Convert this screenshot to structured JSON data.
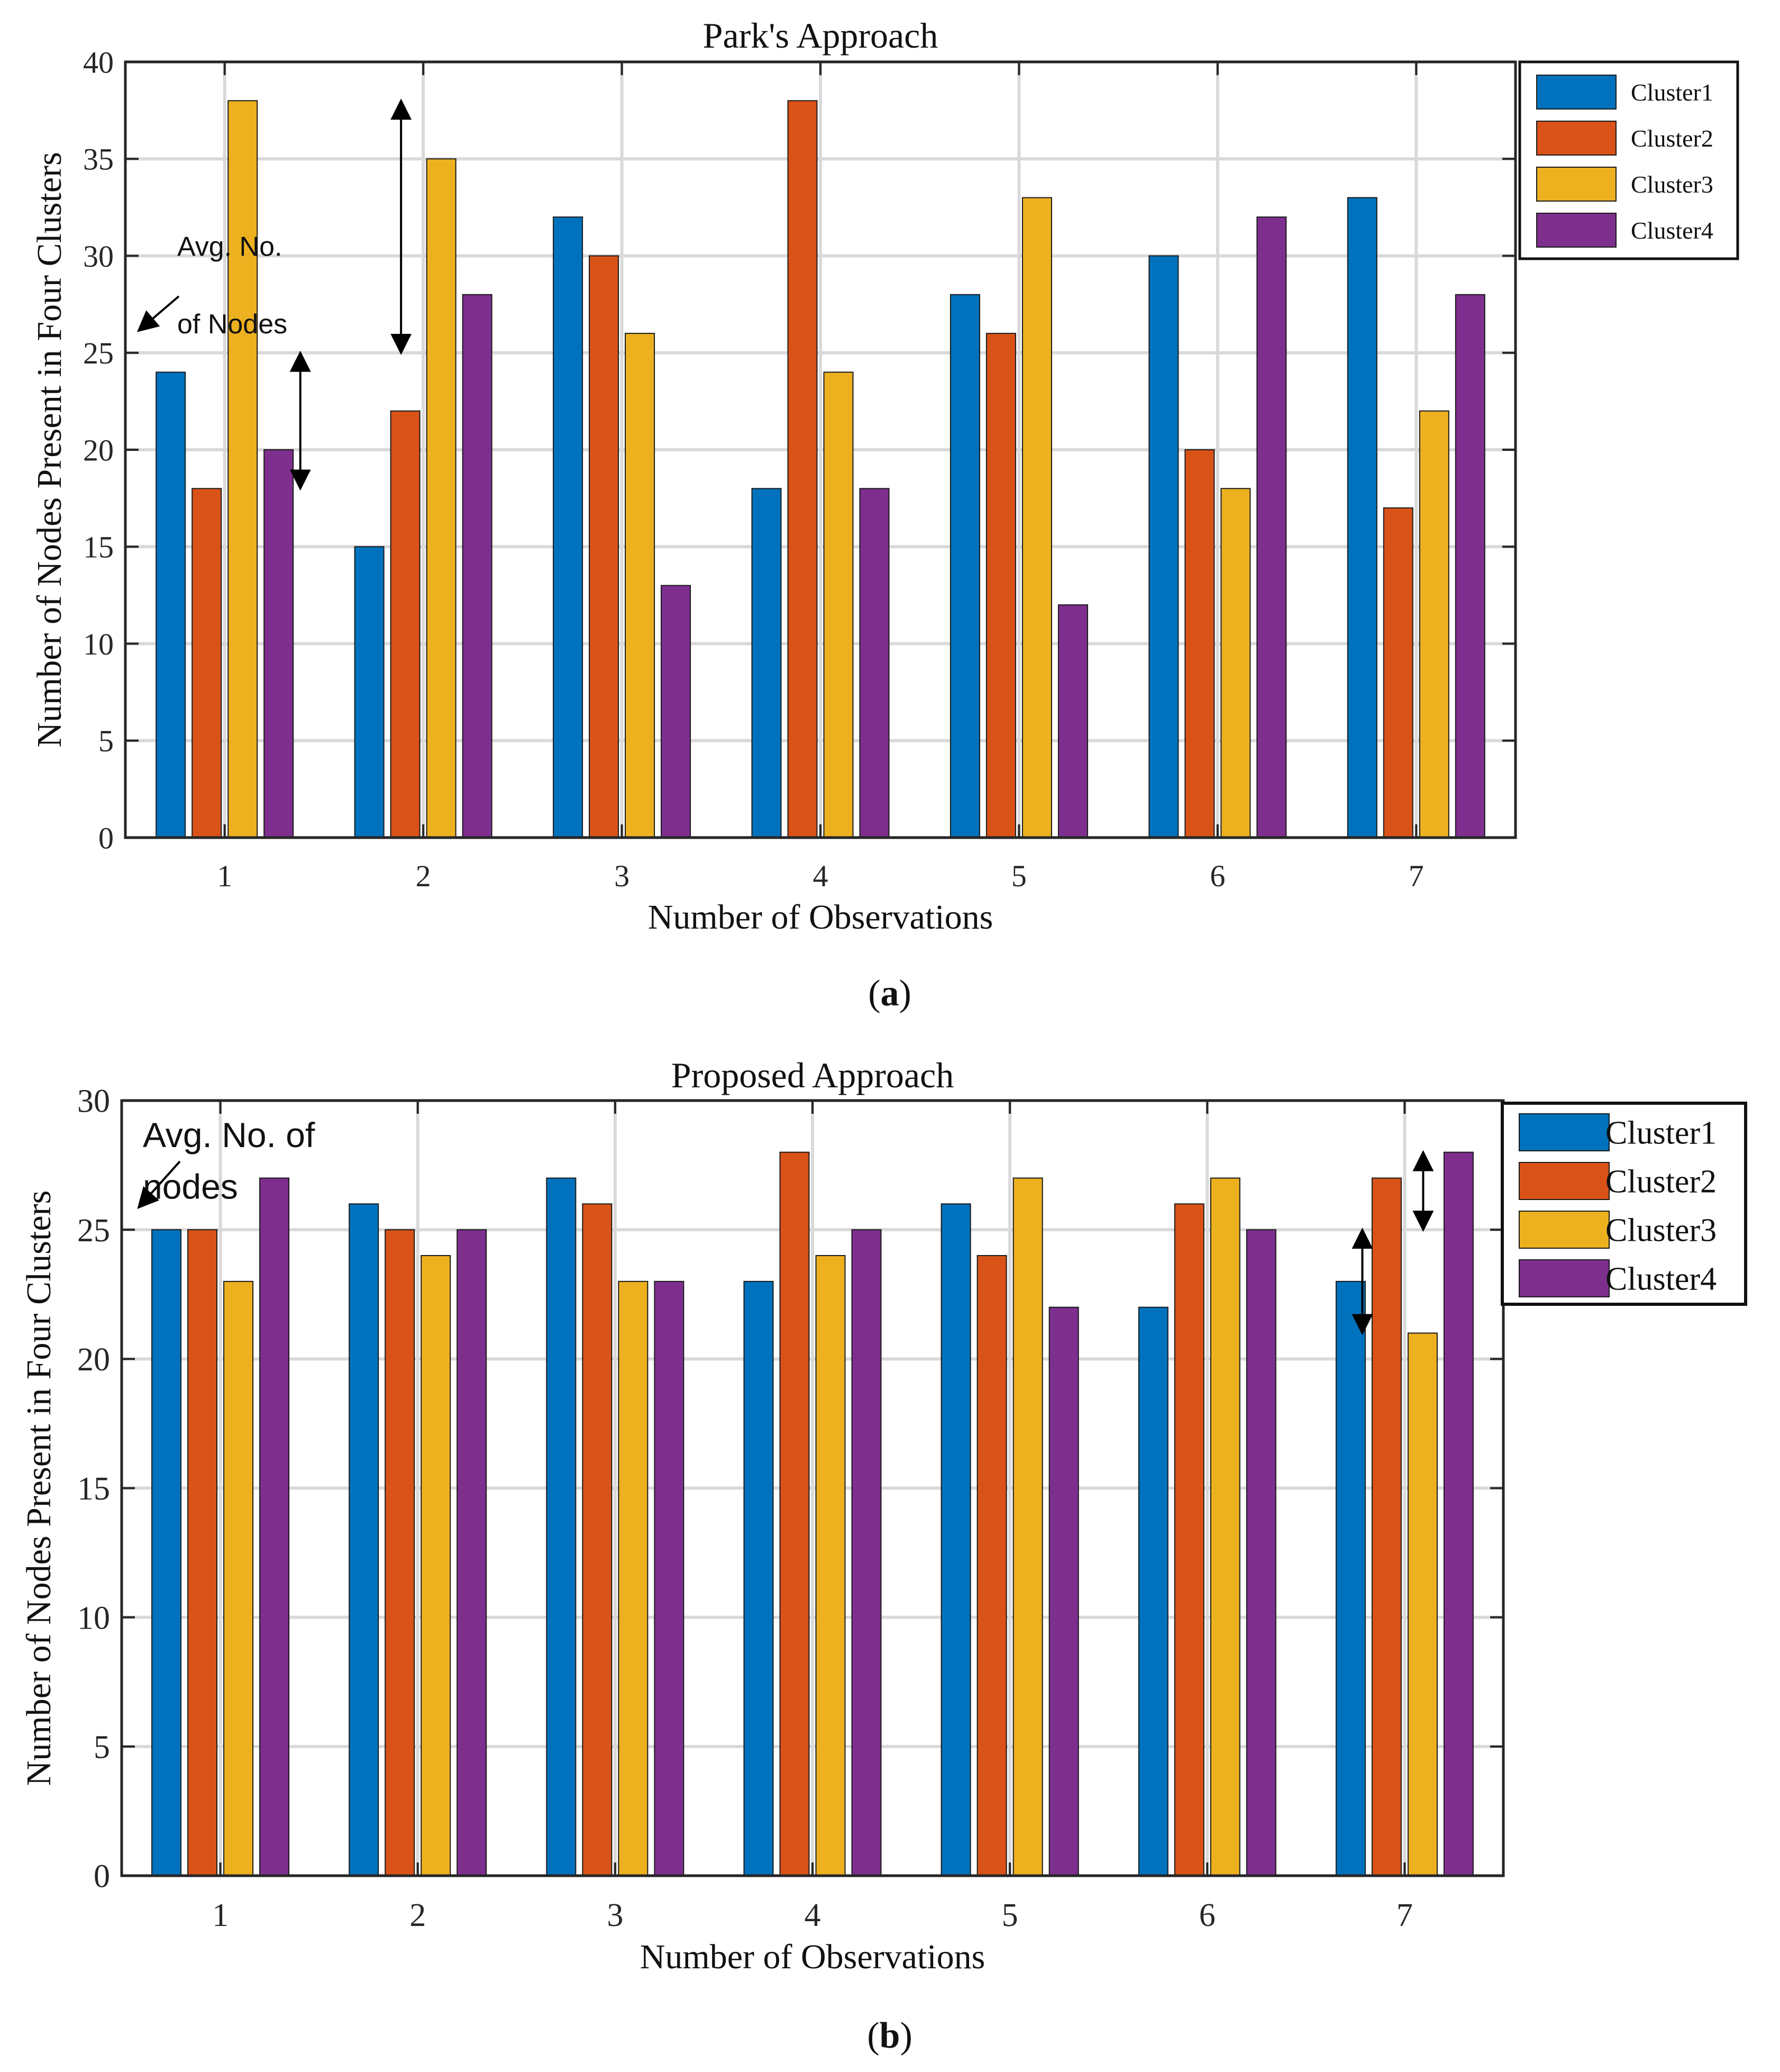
{
  "figure": {
    "panels": [
      "(a)",
      "(b)"
    ],
    "series_colors": [
      "#0072BD",
      "#D95319",
      "#EDB120",
      "#7E2F8E"
    ]
  },
  "chart_data": [
    {
      "type": "bar",
      "panel_label": "(a)",
      "title": "Park's Approach",
      "xlabel": "Number of Observations",
      "ylabel": "Number of Nodes Present in Four Clusters",
      "categories": [
        "1",
        "2",
        "3",
        "4",
        "5",
        "6",
        "7"
      ],
      "ylim": [
        0,
        40
      ],
      "yticks": [
        0,
        5,
        10,
        15,
        20,
        25,
        30,
        35,
        40
      ],
      "grid": true,
      "legend_position": "outside-top-right",
      "series": [
        {
          "name": "Cluster1",
          "values": [
            24,
            15,
            32,
            18,
            28,
            30,
            33
          ]
        },
        {
          "name": "Cluster2",
          "values": [
            18,
            22,
            30,
            38,
            26,
            20,
            17
          ]
        },
        {
          "name": "Cluster3",
          "values": [
            38,
            35,
            26,
            24,
            33,
            18,
            22
          ]
        },
        {
          "name": "Cluster4",
          "values": [
            20,
            28,
            13,
            18,
            12,
            32,
            28
          ]
        }
      ],
      "annotations": [
        {
          "text": "Avg. No.",
          "y": 30
        },
        {
          "text": "of Nodes",
          "y": 26
        }
      ],
      "range_arrows": [
        {
          "category_index": 0,
          "from": 18,
          "to": 25
        },
        {
          "category_index": 1,
          "from": 25,
          "to": 38
        }
      ]
    },
    {
      "type": "bar",
      "panel_label": "(b)",
      "title": "Proposed Approach",
      "xlabel": "Number of Observations",
      "ylabel": "Number of Nodes Present in Four Clusters",
      "categories": [
        "1",
        "2",
        "3",
        "4",
        "5",
        "6",
        "7"
      ],
      "ylim": [
        0,
        30
      ],
      "yticks": [
        0,
        5,
        10,
        15,
        20,
        25,
        30
      ],
      "grid": true,
      "legend_position": "outside-top-right",
      "series": [
        {
          "name": "Cluster1",
          "values": [
            25,
            26,
            27,
            23,
            26,
            22,
            23
          ]
        },
        {
          "name": "Cluster2",
          "values": [
            25,
            25,
            26,
            28,
            24,
            26,
            27
          ]
        },
        {
          "name": "Cluster3",
          "values": [
            23,
            24,
            23,
            24,
            27,
            27,
            21
          ]
        },
        {
          "name": "Cluster4",
          "values": [
            27,
            25,
            23,
            25,
            22,
            25,
            28
          ]
        }
      ],
      "annotations": [
        {
          "text": "Avg. No. of",
          "y": 28.2
        },
        {
          "text": "nodes",
          "y": 26.2
        }
      ],
      "range_arrows": [
        {
          "category_index": 6,
          "from": 21,
          "to": 25
        },
        {
          "category_index": 6,
          "from": 25,
          "to": 28
        }
      ]
    }
  ]
}
